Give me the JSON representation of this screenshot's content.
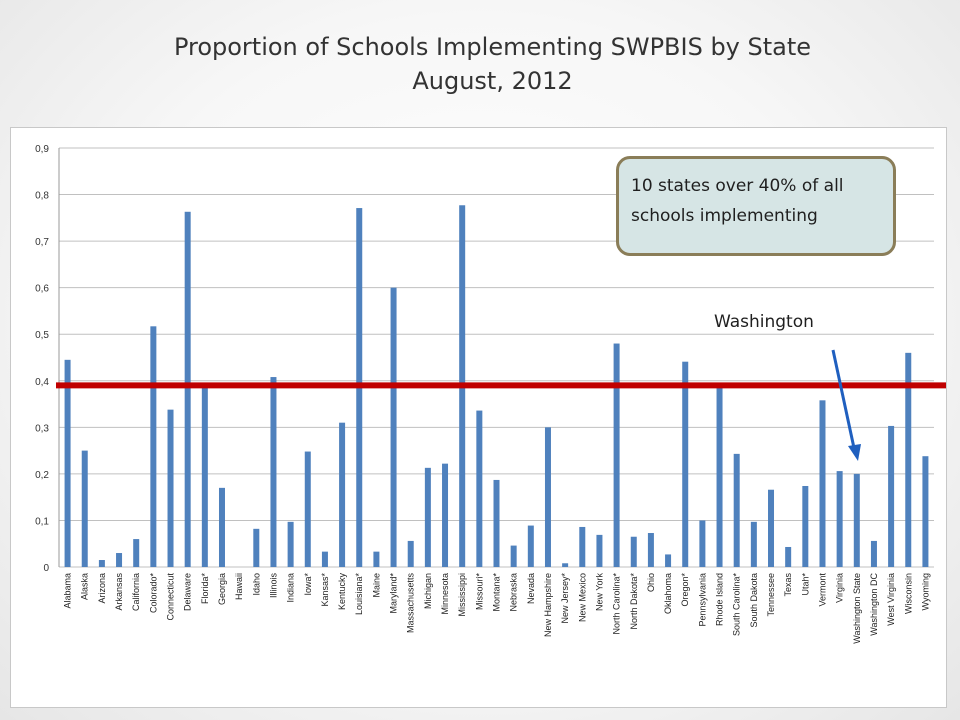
{
  "title": {
    "line1": "Proportion of Schools Implementing SWPBIS by State",
    "line2": "August, 2012"
  },
  "callout": {
    "text": "10 states over 40% of all schools implementing"
  },
  "annotation": {
    "text": "Washington"
  },
  "colors": {
    "bar": "#4f81bd",
    "threshold": "#c00000",
    "arrow": "#1f5fbf",
    "grid": "#c0c0c0"
  },
  "chart_data": {
    "type": "bar",
    "title": "",
    "xlabel": "",
    "ylabel": "",
    "ylim": [
      0,
      0.9
    ],
    "yticks": [
      "0",
      "0,1",
      "0,2",
      "0,3",
      "0,4",
      "0,5",
      "0,6",
      "0,7",
      "0,8",
      "0,9"
    ],
    "grid": true,
    "threshold": 0.39,
    "categories": [
      "Alabama",
      "Alaska",
      "Arizona",
      "Arkansas",
      "California",
      "Colorado*",
      "Connecticut",
      "Delaware",
      "Florida*",
      "Georgia",
      "Hawaii",
      "Idaho",
      "Illinois",
      "Indiana",
      "Iowa*",
      "Kansas*",
      "Kentucky",
      "Louisiana*",
      "Maine",
      "Maryland*",
      "Massachusetts",
      "Michigan",
      "Minnesota",
      "Mississippi",
      "Missouri*",
      "Montana*",
      "Nebraska",
      "Nevada",
      "New Hampshire",
      "New Jersey*",
      "New Mexico",
      "New York",
      "North Carolina*",
      "North Dakota*",
      "Ohio",
      "Oklahoma",
      "Oregon*",
      "Pennsylvania",
      "Rhode Island",
      "South Carolina*",
      "South Dakota",
      "Tennessee",
      "Texas",
      "Utah*",
      "Vermont",
      "Virginia",
      "Washington State",
      "Washington DC",
      "West Virginia",
      "Wisconsin",
      "Wyoming"
    ],
    "values": [
      0.445,
      0.25,
      0.015,
      0.03,
      0.06,
      0.517,
      0.338,
      0.763,
      0.385,
      0.17,
      0.0,
      0.082,
      0.408,
      0.097,
      0.248,
      0.033,
      0.31,
      0.771,
      0.033,
      0.6,
      0.056,
      0.213,
      0.222,
      0.777,
      0.336,
      0.187,
      0.046,
      0.089,
      0.3,
      0.008,
      0.086,
      0.069,
      0.48,
      0.065,
      0.073,
      0.027,
      0.441,
      0.1,
      0.388,
      0.243,
      0.097,
      0.166,
      0.043,
      0.174,
      0.358,
      0.206,
      0.2,
      0.056,
      0.303,
      0.46,
      0.238
    ]
  }
}
